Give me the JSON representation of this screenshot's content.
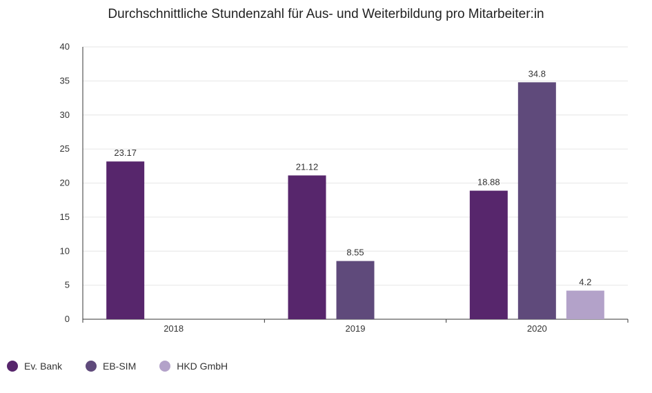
{
  "chart_data": {
    "type": "bar",
    "title": "Durchschnittliche Stundenzahl für Aus- und Weiterbildung pro Mitarbeiter:in",
    "xlabel": "",
    "ylabel": "",
    "categories": [
      "2018",
      "2019",
      "2020"
    ],
    "ylim": [
      0,
      40
    ],
    "yticks": [
      0,
      5,
      10,
      15,
      20,
      25,
      30,
      35,
      40
    ],
    "grid": true,
    "legend_position": "bottom-left",
    "series": [
      {
        "name": "Ev. Bank",
        "color": "#57266c",
        "values": [
          23.17,
          21.12,
          18.88
        ],
        "labels": [
          "23.17",
          "21.12",
          "18.88"
        ]
      },
      {
        "name": "EB-SIM",
        "color": "#5f4a7b",
        "values": [
          null,
          8.55,
          34.8
        ],
        "labels": [
          "",
          "8.55",
          "34.8"
        ]
      },
      {
        "name": "HKD GmbH",
        "color": "#b3a2c9",
        "values": [
          null,
          null,
          4.2
        ],
        "labels": [
          "",
          "",
          "4.2"
        ]
      }
    ]
  }
}
